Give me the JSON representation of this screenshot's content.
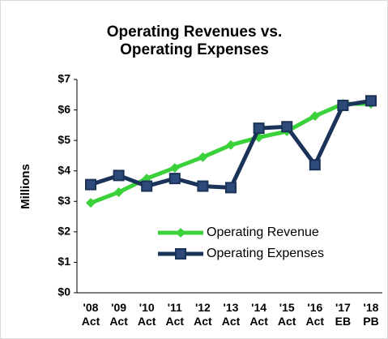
{
  "chart_data": {
    "type": "line",
    "title": "Operating Revenues vs.\nOperating Expenses",
    "y_label": "Millions",
    "categories": [
      "'08\nAct",
      "'09\nAct",
      "'10\nAct",
      "'11\nAct",
      "'12\nAct",
      "'13\nAct",
      "'14\nAct",
      "'15\nAct",
      "'16\nAct",
      "'17\nEB",
      "'18\nPB"
    ],
    "series": [
      {
        "name": "Operating Revenue",
        "color": "#3ad13a",
        "marker": "diamond",
        "values": [
          2.95,
          3.3,
          3.75,
          4.1,
          4.45,
          4.85,
          5.1,
          5.3,
          5.8,
          6.2,
          6.2
        ]
      },
      {
        "name": "Operating Expenses",
        "color": "#1b3358",
        "marker": "square",
        "values": [
          3.55,
          3.85,
          3.5,
          3.75,
          3.5,
          3.45,
          5.4,
          5.45,
          4.2,
          6.15,
          6.3
        ]
      }
    ],
    "ylim": [
      0,
      7
    ],
    "yticks": [
      {
        "value": 0,
        "label": "$0"
      },
      {
        "value": 1,
        "label": "$1"
      },
      {
        "value": 2,
        "label": "$2"
      },
      {
        "value": 3,
        "label": "$3"
      },
      {
        "value": 4,
        "label": "$4"
      },
      {
        "value": 5,
        "label": "$5"
      },
      {
        "value": 6,
        "label": "$6"
      },
      {
        "value": 7,
        "label": "$7"
      }
    ],
    "legend": "lower right"
  }
}
